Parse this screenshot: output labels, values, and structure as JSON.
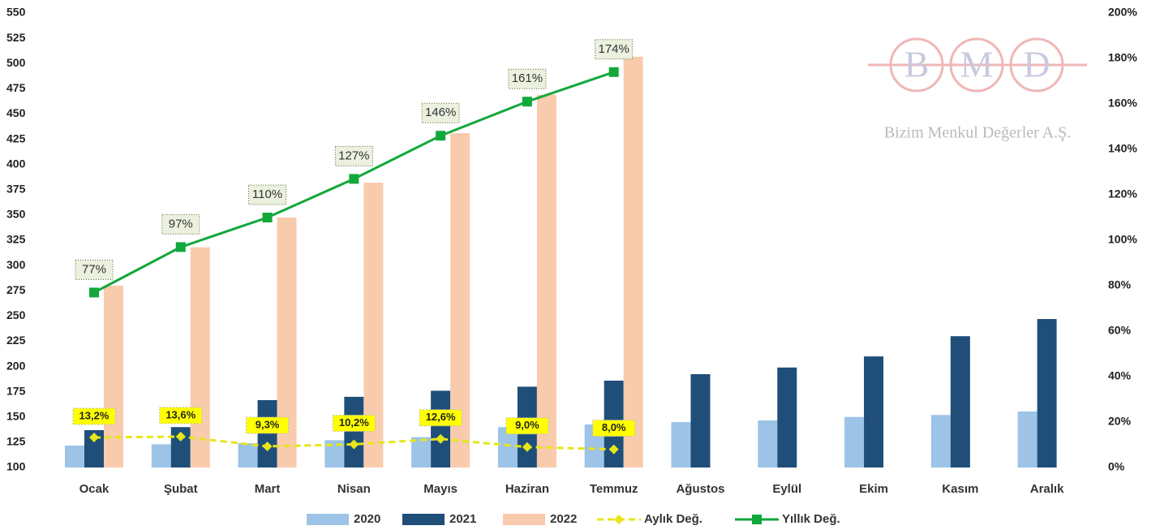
{
  "chart_data": {
    "type": "bar-line",
    "categories": [
      "Ocak",
      "Şubat",
      "Mart",
      "Nisan",
      "Mayıs",
      "Haziran",
      "Temmuz",
      "Ağustos",
      "Eylül",
      "Ekim",
      "Kasım",
      "Aralık"
    ],
    "ylim": [
      100,
      550
    ],
    "yticks": [
      100,
      125,
      150,
      175,
      200,
      225,
      250,
      275,
      300,
      325,
      350,
      375,
      400,
      425,
      450,
      475,
      500,
      525,
      550
    ],
    "y2lim": [
      0,
      200
    ],
    "y2ticks": [
      {
        "value": 0,
        "label": "0%"
      },
      {
        "value": 20,
        "label": "20%"
      },
      {
        "value": 40,
        "label": "40%"
      },
      {
        "value": 60,
        "label": "60%"
      },
      {
        "value": 80,
        "label": "80%"
      },
      {
        "value": 100,
        "label": "100%"
      },
      {
        "value": 120,
        "label": "120%"
      },
      {
        "value": 140,
        "label": "140%"
      },
      {
        "value": 160,
        "label": "160%"
      },
      {
        "value": 180,
        "label": "180%"
      },
      {
        "value": 200,
        "label": "200%"
      }
    ],
    "legend": "bottom",
    "series": [
      {
        "name": "2020",
        "type": "bar",
        "color": "#9dc3e6",
        "values": [
          121.7,
          123,
          124,
          127,
          130,
          140,
          142.6,
          145,
          146.6,
          150,
          152,
          155.5
        ]
      },
      {
        "name": "2021",
        "type": "bar",
        "color": "#1f4e79",
        "values": [
          137,
          140,
          166.7,
          170,
          176,
          180,
          186,
          192.4,
          199,
          210,
          230,
          247
        ]
      },
      {
        "name": "2022",
        "type": "bar",
        "color": "#f8cbad",
        "values": [
          280,
          318,
          347.6,
          382,
          431,
          469,
          506.7,
          null,
          null,
          null,
          null,
          null
        ]
      },
      {
        "name": "Aylık Değ.",
        "type": "line",
        "axis": "y2",
        "color": "#e6e619",
        "dashed": true,
        "values": [
          13.2,
          13.6,
          9.3,
          10.2,
          12.6,
          9.0,
          8.0,
          null,
          null,
          null,
          null,
          null
        ],
        "value_labels": [
          "13,2%",
          "13,6%",
          "9,3%",
          "10,2%",
          "12,6%",
          "9,0%",
          "8,0%",
          null,
          null,
          null,
          null,
          null
        ]
      },
      {
        "name": "Yıllık Değ.",
        "type": "line",
        "axis": "y2",
        "color": "#13a83c",
        "dashed": false,
        "values": [
          77,
          97,
          110,
          127,
          146,
          161,
          174,
          null,
          null,
          null,
          null,
          null
        ],
        "value_labels": [
          "77%",
          "97%",
          "110%",
          "127%",
          "146%",
          "161%",
          "174%",
          null,
          null,
          null,
          null,
          null
        ]
      }
    ]
  },
  "logo": {
    "letters": [
      "B",
      "M",
      "D"
    ],
    "company": "Bizim Menkul Değerler A.Ş."
  }
}
